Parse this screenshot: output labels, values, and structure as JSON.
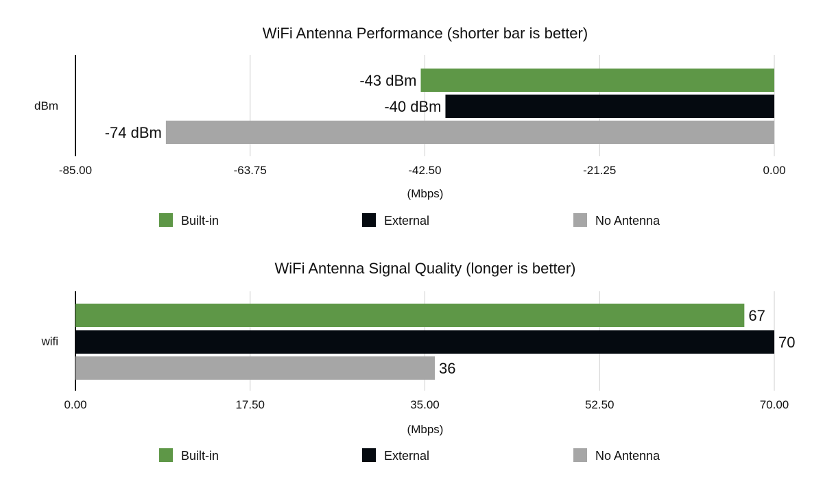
{
  "chart_data": [
    {
      "type": "bar",
      "orientation": "horizontal",
      "title": "WiFi Antenna Performance (shorter bar is better)",
      "categories": [
        "dBm"
      ],
      "series": [
        {
          "name": "Built-in",
          "values": [
            -43
          ],
          "label": "-43 dBm",
          "color": "#5e9747"
        },
        {
          "name": "External",
          "values": [
            -40
          ],
          "label": "-40 dBm",
          "color": "#050a10"
        },
        {
          "name": "No Antenna",
          "values": [
            -74
          ],
          "label": "-74 dBm",
          "color": "#a6a6a6"
        }
      ],
      "xlabel": "(Mbps)",
      "xlim": [
        -85,
        0
      ],
      "xticks": [
        "-85.00",
        "-63.75",
        "-42.50",
        "-21.25",
        "0.00"
      ],
      "grid": true,
      "legend_position": "bottom"
    },
    {
      "type": "bar",
      "orientation": "horizontal",
      "title": "WiFi Antenna Signal Quality (longer is better)",
      "categories": [
        "wifi"
      ],
      "series": [
        {
          "name": "Built-in",
          "values": [
            67
          ],
          "label": "67",
          "color": "#5e9747"
        },
        {
          "name": "External",
          "values": [
            70
          ],
          "label": "70",
          "color": "#050a10"
        },
        {
          "name": "No Antenna",
          "values": [
            36
          ],
          "label": "36",
          "color": "#a6a6a6"
        }
      ],
      "xlabel": "(Mbps)",
      "xlim": [
        0,
        70
      ],
      "xticks": [
        "0.00",
        "17.50",
        "35.00",
        "52.50",
        "70.00"
      ],
      "grid": true,
      "legend_position": "bottom"
    }
  ]
}
